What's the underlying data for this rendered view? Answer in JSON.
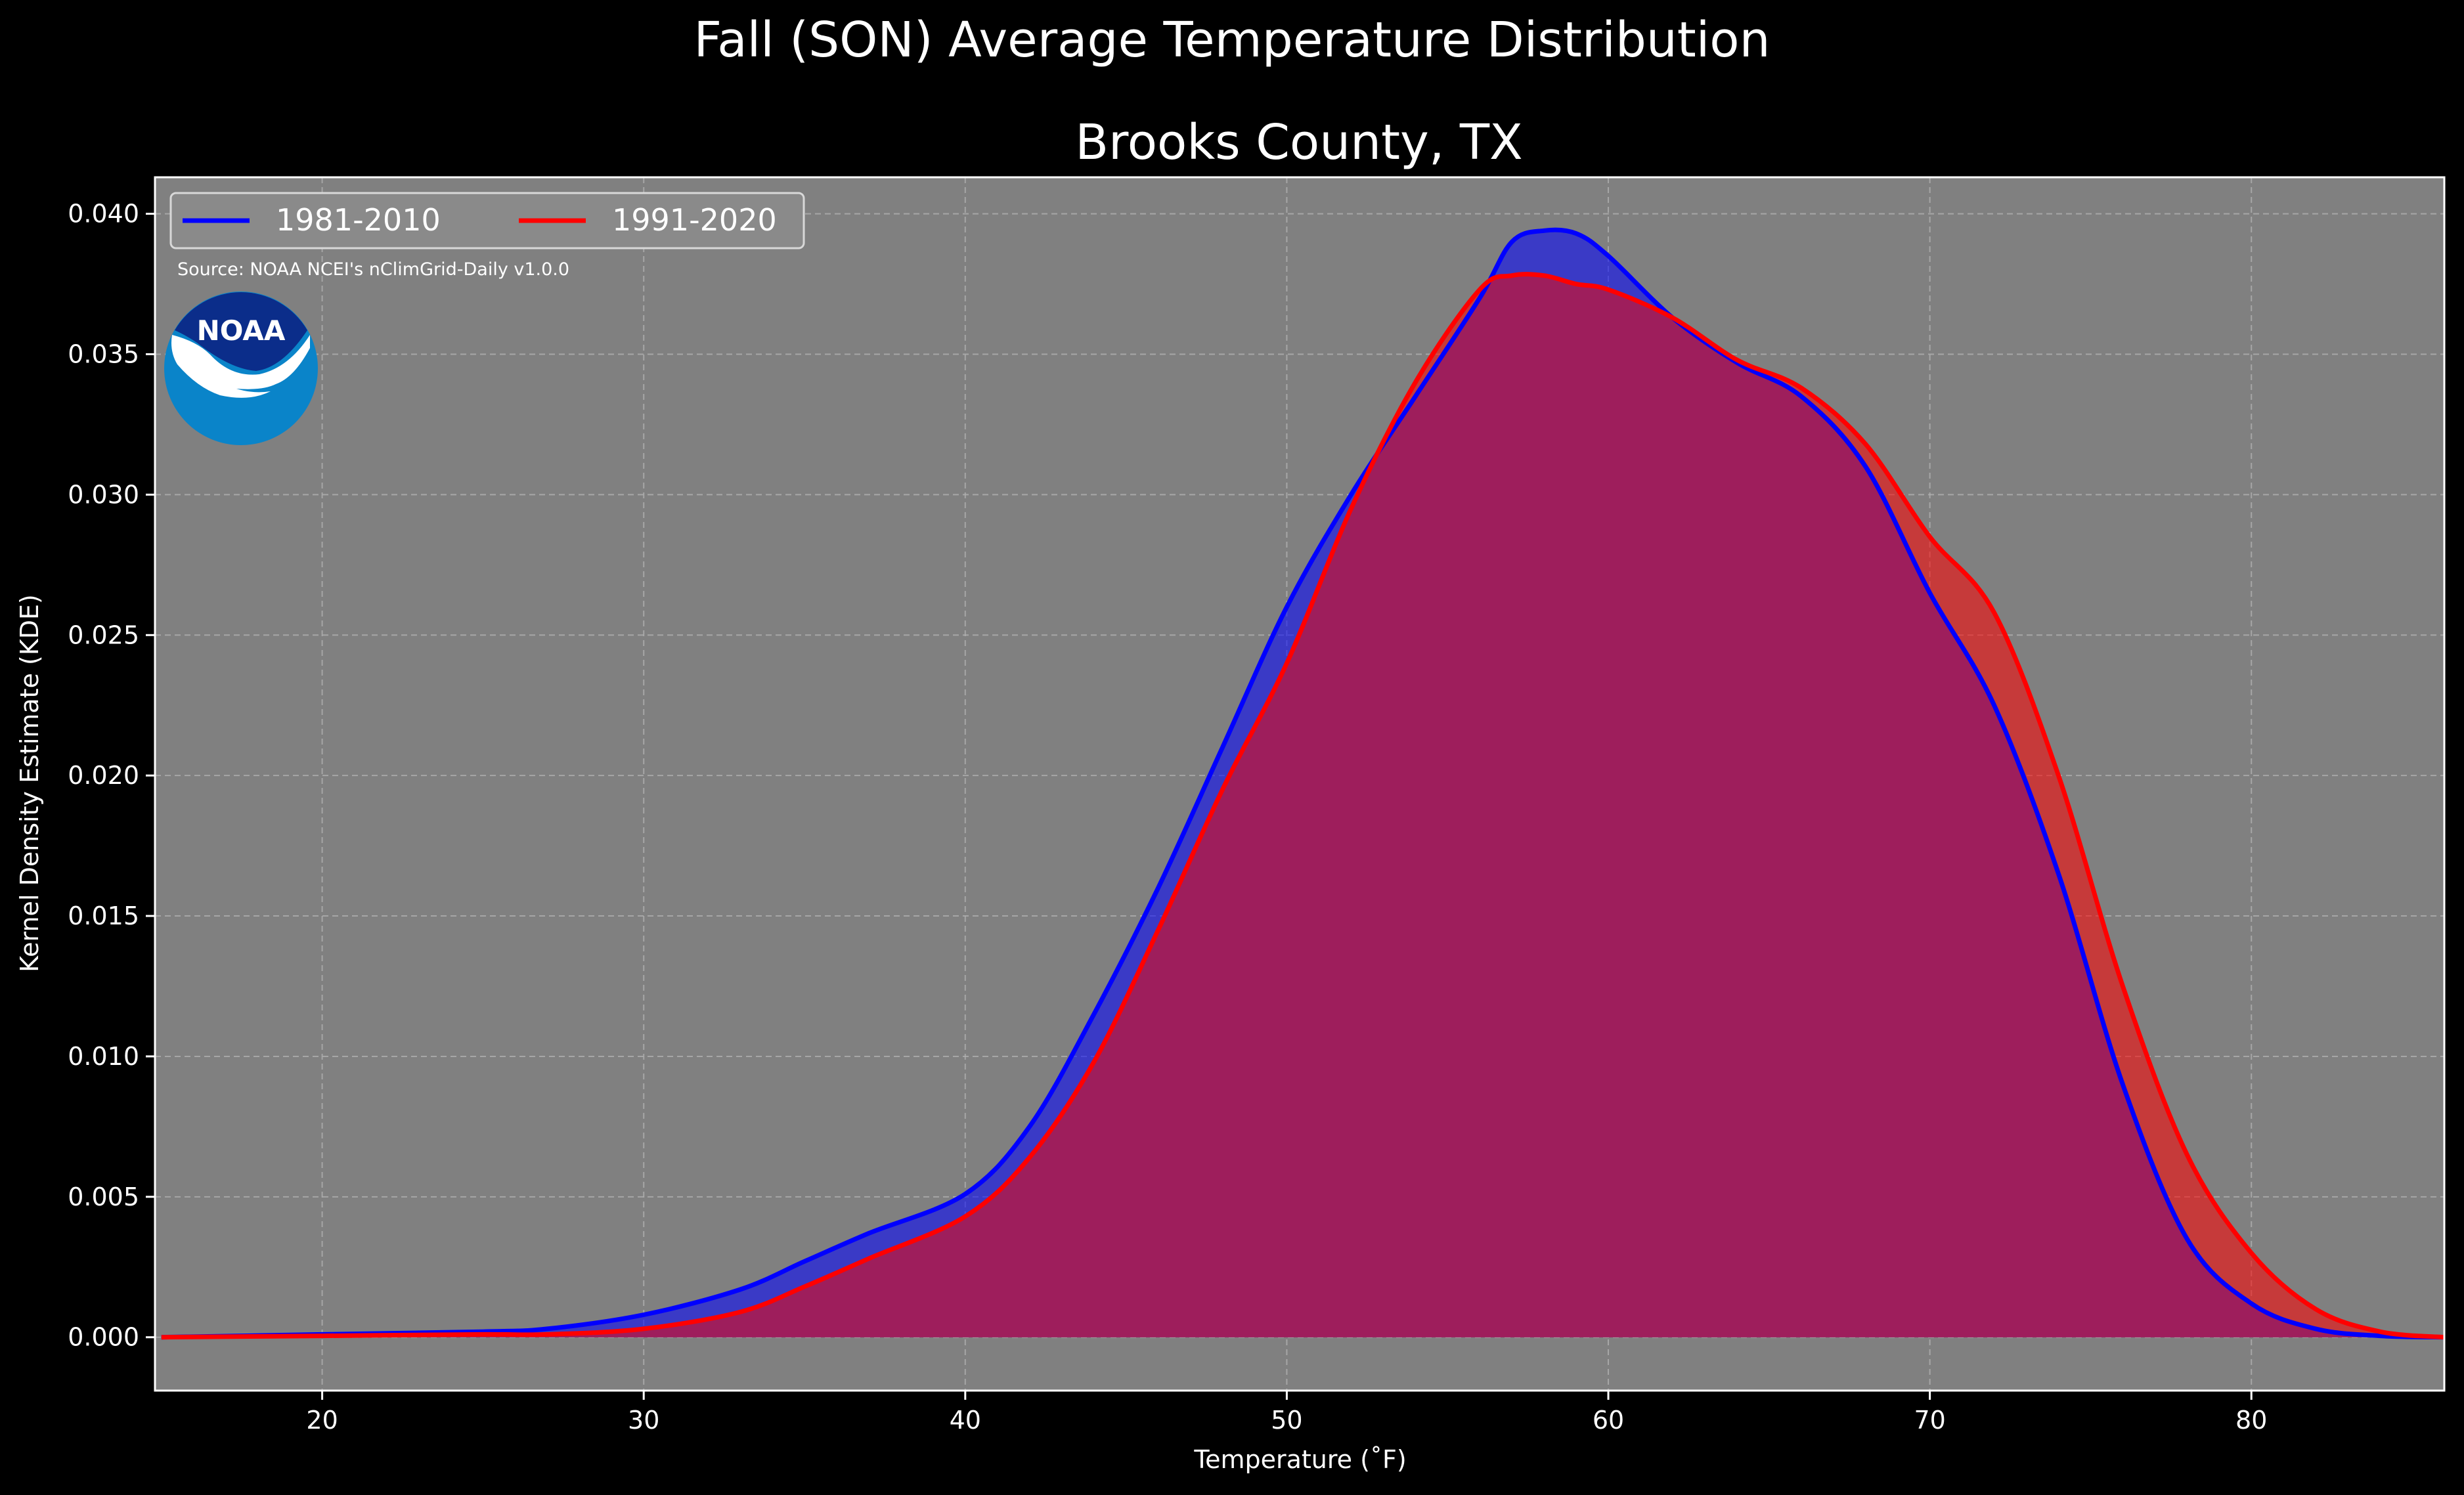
{
  "chart_data": {
    "type": "area",
    "suptitle": "Fall (SON) Average Temperature Distribution",
    "title": "Brooks County, TX",
    "xlabel": "Temperature (˚F)",
    "ylabel": "Kernel Density Estimate (KDE)",
    "xlim": [
      14.8,
      86.0
    ],
    "ylim": [
      -0.0019,
      0.0413
    ],
    "xticks": [
      20,
      30,
      40,
      50,
      60,
      70,
      80
    ],
    "xtick_labels": [
      "20",
      "30",
      "40",
      "50",
      "60",
      "70",
      "80"
    ],
    "yticks": [
      0.0,
      0.005,
      0.01,
      0.015,
      0.02,
      0.025,
      0.03,
      0.035,
      0.04
    ],
    "ytick_labels": [
      "0.000",
      "0.005",
      "0.010",
      "0.015",
      "0.020",
      "0.025",
      "0.030",
      "0.035",
      "0.040"
    ],
    "grid": true,
    "legend_position": "top-left",
    "source_note": "Source: NOAA NCEI's nClimGrid-Daily v1.0.0",
    "logo_text": "NOAA",
    "colors": {
      "figure_bg": "#000000",
      "axes_bg": "#808080",
      "series1": "#0000ff",
      "series2": "#ff0000",
      "overlap_fill": "#9e1e5c",
      "grid": "#b0b0b0",
      "logo_dark": "#0b2d8a",
      "logo_light": "#0a84c9"
    },
    "series": [
      {
        "name": "1981-2010",
        "color": "#0000ff",
        "x": [
          15,
          20,
          25,
          27,
          30,
          33,
          35,
          37,
          40,
          42,
          44,
          46,
          48,
          50,
          52,
          54,
          56,
          57,
          58,
          59,
          60,
          62,
          64,
          66,
          68,
          70,
          72,
          74,
          76,
          78,
          80,
          82,
          84,
          86
        ],
        "y": [
          0.0,
          0.0001,
          0.0002,
          0.0003,
          0.0008,
          0.0017,
          0.0027,
          0.0037,
          0.0051,
          0.0075,
          0.0115,
          0.016,
          0.021,
          0.026,
          0.03,
          0.0335,
          0.037,
          0.039,
          0.0394,
          0.0393,
          0.0385,
          0.0363,
          0.0347,
          0.0335,
          0.031,
          0.0265,
          0.0225,
          0.0165,
          0.009,
          0.0035,
          0.0012,
          0.0003,
          5e-05,
          0.0
        ]
      },
      {
        "name": "1991-2020",
        "color": "#ff0000",
        "x": [
          15,
          20,
          25,
          27,
          30,
          33,
          35,
          37,
          40,
          42,
          44,
          46,
          48,
          50,
          52,
          54,
          56,
          57,
          58,
          59,
          60,
          62,
          64,
          66,
          68,
          70,
          72,
          74,
          76,
          78,
          80,
          82,
          84,
          86
        ],
        "y": [
          0.0,
          5e-05,
          0.0001,
          0.0001,
          0.0003,
          0.0009,
          0.0018,
          0.0028,
          0.0043,
          0.0064,
          0.0098,
          0.0145,
          0.0195,
          0.024,
          0.0295,
          0.034,
          0.0373,
          0.0378,
          0.0378,
          0.0375,
          0.0373,
          0.0363,
          0.0348,
          0.0338,
          0.0318,
          0.0285,
          0.0258,
          0.02,
          0.0125,
          0.0065,
          0.003,
          0.001,
          0.0002,
          0.0
        ]
      }
    ]
  }
}
